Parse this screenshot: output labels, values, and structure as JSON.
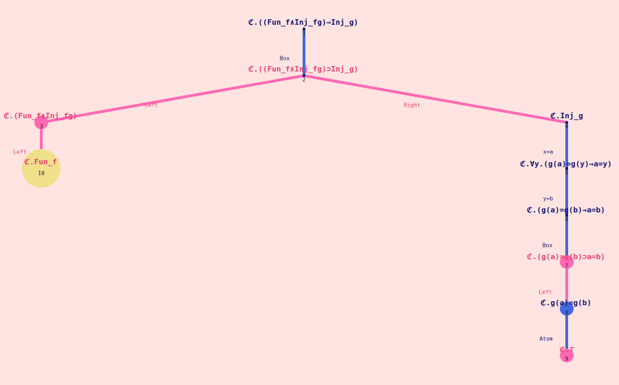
{
  "nodes": [
    {
      "id": "1",
      "label": "ℭ.((Fun_f∧Inj_fg)⇒Inj_g)"
    },
    {
      "id": "2",
      "label": "ℭ.((Fun_f∧Inj_fg)⊃Inj_g)"
    },
    {
      "id": "3",
      "label": "ℭ.(Fun_f∧Inj_fg)"
    },
    {
      "id": "4",
      "label": "ℭ.Inj_g"
    },
    {
      "id": "5",
      "label": "ℭ.∀y.(g(a)=g(y)⇒a=y)"
    },
    {
      "id": "6",
      "label": "ℭ.(g(a)=g(b)⇒a=b)"
    },
    {
      "id": "7",
      "label": "ℭ.(g(a)=g(b)⊃a=b)"
    },
    {
      "id": "8",
      "label": "ℭ.g(a)=g(b)"
    },
    {
      "id": "9",
      "label": "ℭ.⊤"
    },
    {
      "id": "10",
      "label": "ℭ.Fun_f"
    }
  ],
  "edges": [
    {
      "label": "Box"
    },
    {
      "label": "Left"
    },
    {
      "label": "Right"
    },
    {
      "label": "Left"
    },
    {
      "label": "x=a"
    },
    {
      "label": "y=b"
    },
    {
      "label": "Box"
    },
    {
      "label": "Left"
    },
    {
      "label": "Atom"
    }
  ]
}
